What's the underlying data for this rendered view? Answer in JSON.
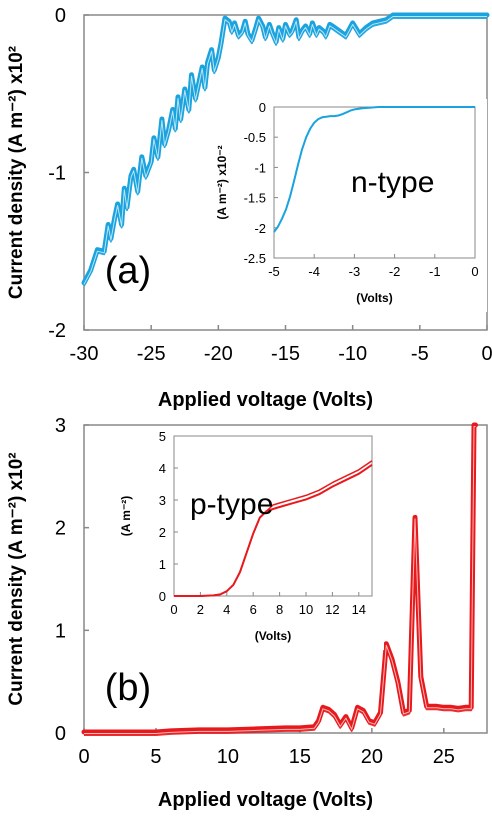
{
  "chart_data": [
    {
      "panel": "(a)",
      "type": "line",
      "ylabel": "Current density (A m⁻²) x10²",
      "xlabel": "Applied voltage (Volts)",
      "xlim": [
        -30,
        0
      ],
      "ylim": [
        -2,
        0
      ],
      "xticks": [
        -30,
        -25,
        -20,
        -15,
        -10,
        -5,
        0
      ],
      "yticks": [
        -2,
        -1,
        0
      ],
      "xtick_labels": [
        "-30",
        "-25",
        "-20",
        "-15",
        "-10",
        "-5",
        "0"
      ],
      "ytick_labels": [
        "-2",
        "-1",
        "0"
      ],
      "color": "#1aa3de",
      "grid": false,
      "series": [
        {
          "x": [
            -30,
            -29.5,
            -29,
            -28.5,
            -28.2,
            -28,
            -27.7,
            -27.5,
            -27.2,
            -27,
            -26.8,
            -26.5,
            -26.3,
            -26,
            -25.7,
            -25.4,
            -25,
            -24.8,
            -24.5,
            -24.2,
            -24,
            -23.7,
            -23.4,
            -23.2,
            -23,
            -22.8,
            -22.5,
            -22.2,
            -22,
            -21.7,
            -21.5,
            -21.2,
            -21,
            -20.8,
            -20.5,
            -20.3,
            -20,
            -19.8,
            -19.5,
            -19.2,
            -19,
            -18.8,
            -18.5,
            -18.2,
            -18,
            -17.8,
            -17.5,
            -17.2,
            -17,
            -16.7,
            -16.5,
            -16.2,
            -16,
            -15.7,
            -15.5,
            -15.2,
            -15,
            -14.7,
            -14.5,
            -14.2,
            -14,
            -13.7,
            -13.5,
            -13.2,
            -13,
            -12.7,
            -12.5,
            -12.2,
            -12,
            -11.7,
            -11.5,
            -11,
            -10.5,
            -10,
            -9.5,
            -9,
            -8.5,
            -8,
            -7.5,
            -7,
            -6,
            -5,
            -4,
            -3,
            -2,
            -1,
            0
          ],
          "y": [
            -1.7,
            -1.62,
            -1.49,
            -1.5,
            -1.33,
            -1.42,
            -1.28,
            -1.2,
            -1.33,
            -1.1,
            -1.22,
            -1.02,
            -0.98,
            -1.12,
            -0.9,
            -1.02,
            -0.93,
            -0.78,
            -0.9,
            -0.66,
            -0.82,
            -0.73,
            -0.6,
            -0.72,
            -0.52,
            -0.66,
            -0.47,
            -0.6,
            -0.38,
            -0.53,
            -0.45,
            -0.33,
            -0.46,
            -0.3,
            -0.22,
            -0.35,
            -0.27,
            -0.18,
            -0.02,
            -0.04,
            -0.1,
            -0.05,
            -0.13,
            -0.1,
            -0.04,
            -0.12,
            -0.16,
            -0.08,
            -0.02,
            -0.07,
            -0.14,
            -0.06,
            -0.11,
            -0.17,
            -0.08,
            -0.15,
            -0.06,
            -0.12,
            -0.1,
            -0.03,
            -0.14,
            -0.09,
            -0.07,
            -0.12,
            -0.05,
            -0.12,
            -0.08,
            -0.1,
            -0.13,
            -0.06,
            -0.07,
            -0.1,
            -0.13,
            -0.05,
            -0.12,
            -0.08,
            -0.05,
            -0.04,
            -0.03,
            0,
            0,
            0,
            0,
            0,
            0,
            0,
            0
          ]
        }
      ],
      "inset": {
        "label": "n-type",
        "ylabel": "(A m⁻²) x10⁻²",
        "xlabel": "(Volts)",
        "xlim": [
          -5,
          0
        ],
        "ylim": [
          -2.5,
          0
        ],
        "xticks": [
          -5,
          -4,
          -3,
          -2,
          -1,
          0
        ],
        "yticks": [
          -2.5,
          -2,
          -1.5,
          -1,
          -0.5,
          0
        ],
        "xtick_labels": [
          "-5",
          "-4",
          "-3",
          "-2",
          "-1",
          "0"
        ],
        "ytick_labels": [
          "-2.5",
          "-2",
          "-1.5",
          "-1",
          "-0.5",
          "0"
        ],
        "x": [
          -5,
          -4.9,
          -4.8,
          -4.7,
          -4.6,
          -4.5,
          -4.4,
          -4.3,
          -4.2,
          -4.1,
          -4.0,
          -3.9,
          -3.8,
          -3.7,
          -3.6,
          -3.5,
          -3.4,
          -3.3,
          -3.2,
          -3.1,
          -3.0,
          -2.8,
          -2.6,
          -2.4,
          -2.2,
          -2.0,
          -1.5,
          -1.0,
          -0.5,
          0
        ],
        "y": [
          -2.07,
          -1.98,
          -1.85,
          -1.69,
          -1.48,
          -1.22,
          -0.95,
          -0.7,
          -0.5,
          -0.36,
          -0.26,
          -0.2,
          -0.17,
          -0.16,
          -0.15,
          -0.15,
          -0.14,
          -0.12,
          -0.09,
          -0.06,
          -0.04,
          -0.02,
          -0.01,
          0,
          0,
          0,
          0,
          0,
          0,
          0
        ]
      }
    },
    {
      "panel": "(b)",
      "type": "line",
      "ylabel": "Current density (A m⁻²) x10²",
      "xlabel": "Applied voltage (Volts)",
      "xlim": [
        0,
        28
      ],
      "ylim": [
        0,
        3
      ],
      "xticks": [
        0,
        5,
        10,
        15,
        20,
        25
      ],
      "yticks": [
        0,
        1,
        2,
        3
      ],
      "xtick_labels": [
        "0",
        "5",
        "10",
        "15",
        "20",
        "25"
      ],
      "ytick_labels": [
        "0",
        "1",
        "2",
        "3"
      ],
      "color": "#e8191c",
      "grid": false,
      "series": [
        {
          "x": [
            0,
            2,
            4,
            5,
            6,
            8,
            10,
            12,
            14,
            15,
            16,
            16.3,
            16.6,
            17,
            17.4,
            17.8,
            18.2,
            18.6,
            19,
            19.4,
            19.8,
            20.2,
            20.6,
            21,
            21.4,
            21.8,
            22.2,
            22.6,
            23,
            23.4,
            23.8,
            24.5,
            25,
            25.5,
            26,
            26.5,
            26.9,
            27.1,
            27.2
          ],
          "y": [
            0.01,
            0.01,
            0.01,
            0.01,
            0.02,
            0.03,
            0.03,
            0.04,
            0.05,
            0.05,
            0.06,
            0.12,
            0.25,
            0.23,
            0.18,
            0.08,
            0.16,
            0.05,
            0.25,
            0.22,
            0.12,
            0.1,
            0.2,
            0.87,
            0.72,
            0.5,
            0.2,
            0.22,
            2.1,
            0.55,
            0.26,
            0.26,
            0.25,
            0.25,
            0.24,
            0.25,
            0.25,
            3.0,
            3.0
          ]
        }
      ],
      "inset": {
        "label": "p-type",
        "ylabel": "(A m⁻²)",
        "xlabel": "(Volts)",
        "xlim": [
          0,
          15
        ],
        "ylim": [
          0,
          5
        ],
        "xticks": [
          0,
          2,
          4,
          6,
          8,
          10,
          12,
          14
        ],
        "yticks": [
          0,
          1,
          2,
          3,
          4,
          5
        ],
        "xtick_labels": [
          "0",
          "2",
          "4",
          "6",
          "8",
          "10",
          "12",
          "14"
        ],
        "ytick_labels": [
          "0",
          "1",
          "2",
          "3",
          "4",
          "5"
        ],
        "x": [
          0,
          1,
          2,
          3,
          3.5,
          4,
          4.5,
          5,
          5.5,
          6,
          6.5,
          7,
          7.5,
          8,
          9,
          10,
          11,
          12,
          13,
          14,
          15
        ],
        "y": [
          0,
          0,
          0,
          0.02,
          0.05,
          0.15,
          0.35,
          0.75,
          1.35,
          1.95,
          2.45,
          2.65,
          2.72,
          2.78,
          2.9,
          3.02,
          3.18,
          3.42,
          3.62,
          3.82,
          4.1
        ]
      }
    }
  ]
}
